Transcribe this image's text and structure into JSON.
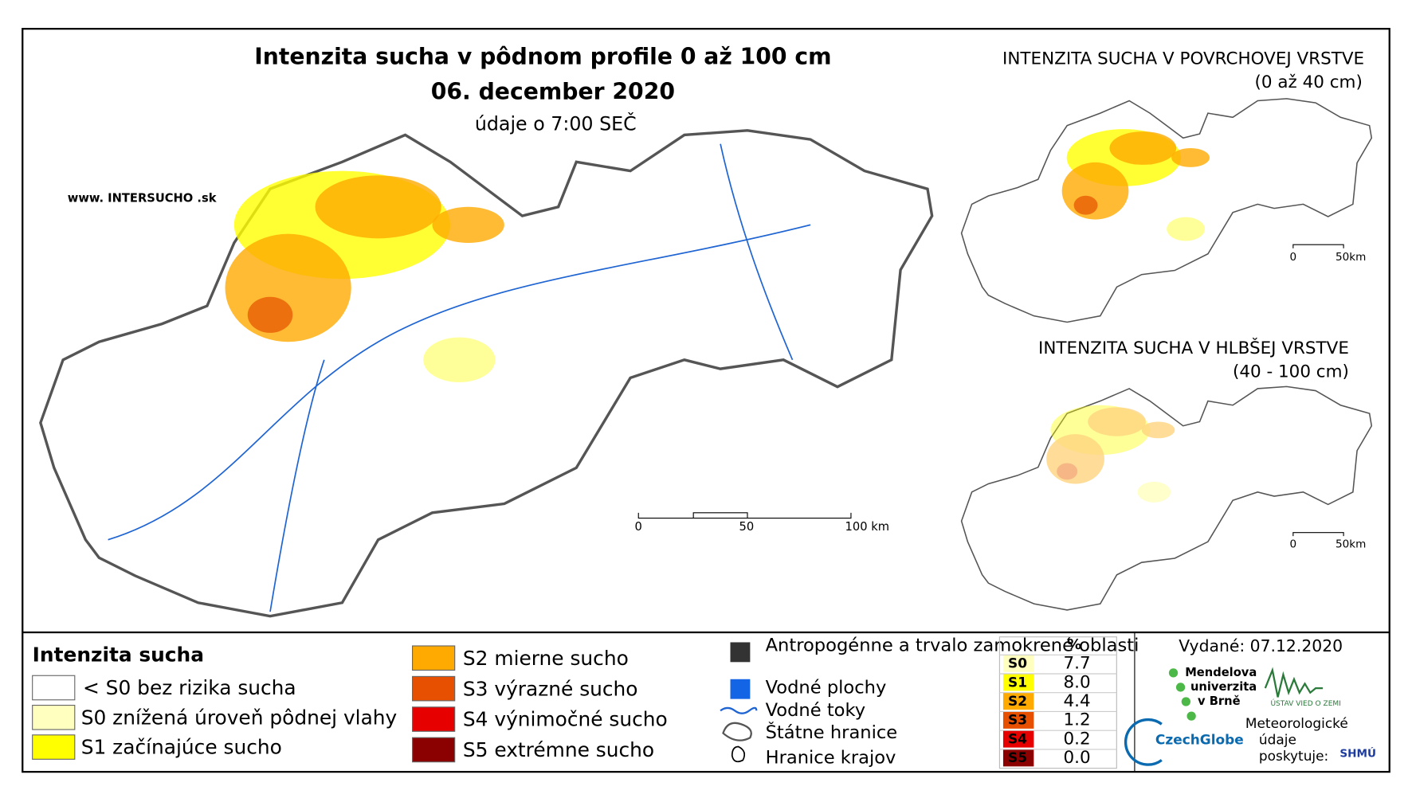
{
  "header": {
    "title": "Intenzita sucha v pôdnom profile 0 až 100 cm",
    "date": "06. december 2020",
    "note": "údaje o 7:00 SEČ",
    "url": "www. INTERSUCHO .sk"
  },
  "main_map": {
    "scale": [
      "0",
      "50",
      "100 km"
    ]
  },
  "insets": [
    {
      "title": "INTENZITA SUCHA V POVRCHOVEJ VRSTVE",
      "subtitle": "(0 až 40 cm)",
      "scale": [
        "0",
        "50km"
      ]
    },
    {
      "title": "INTENZITA SUCHA V HLBŠEJ VRSTVE",
      "subtitle": "(40 - 100 cm)",
      "scale": [
        "0",
        "50km"
      ]
    }
  ],
  "legend": {
    "title": "Intenzita sucha",
    "items": [
      {
        "label": "< S0 bez rizika sucha",
        "color": "#ffffff"
      },
      {
        "label": "S0 znížená úroveň pôdnej vlahy",
        "color": "#ffffc0"
      },
      {
        "label": "S1 začínajúce sucho",
        "color": "#ffff00"
      },
      {
        "label": "S2 mierne sucho",
        "color": "#ffaa00"
      },
      {
        "label": "S3 výrazné sucho",
        "color": "#e65000"
      },
      {
        "label": "S4 výnimočné sucho",
        "color": "#e60000"
      },
      {
        "label": "S5 extrémne sucho",
        "color": "#8b0000"
      }
    ]
  },
  "symbols": [
    "Antropogénne a trvalo zamokrené oblasti",
    "Vodné plochy",
    "Vodné toky",
    "Štátne hranice",
    "Hranice krajov"
  ],
  "table": {
    "header": "%",
    "rows": [
      [
        "S0",
        "7.7"
      ],
      [
        "S1",
        "8.0"
      ],
      [
        "S2",
        "4.4"
      ],
      [
        "S3",
        "1.2"
      ],
      [
        "S4",
        "0.2"
      ],
      [
        "S5",
        "0.0"
      ]
    ]
  },
  "footer": {
    "issued": "Vydané: 07.12.2020",
    "mendel": [
      "Mendelova",
      "univerzita",
      "v Brně"
    ],
    "czechglobe": "CzechGlobe",
    "ustav": "ÚSTAV VIED O ZEMI",
    "meteo": [
      "Meteorologické",
      "údaje",
      "poskytuje:"
    ],
    "shmu": "SHMÚ"
  }
}
